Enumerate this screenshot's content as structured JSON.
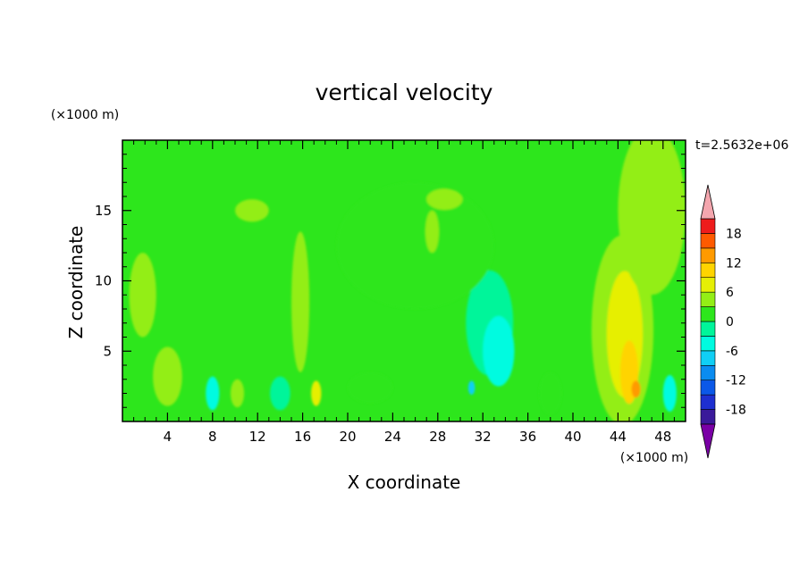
{
  "chart_data": {
    "type": "heatmap",
    "title": "vertical velocity",
    "xlabel": "X coordinate",
    "ylabel": "Z coordinate",
    "x_unit": "(×1000 m)",
    "y_unit": "(×1000 m)",
    "time_label": "t=2.5632e+06",
    "xlim": [
      0,
      50
    ],
    "ylim": [
      0,
      20
    ],
    "x_ticks": [
      4,
      8,
      12,
      16,
      20,
      24,
      28,
      32,
      36,
      40,
      44,
      48
    ],
    "y_ticks": [
      5,
      10,
      15
    ],
    "grid": false,
    "colorbar": {
      "levels": [
        -21,
        -18,
        -15,
        -12,
        -9,
        -6,
        -3,
        0,
        3,
        6,
        9,
        12,
        15,
        18,
        21
      ],
      "labeled_values": [
        18,
        12,
        6,
        0,
        -6,
        -12,
        -18
      ],
      "colors": [
        "#7a00a6",
        "#3a1a9a",
        "#1e2fd0",
        "#0b58e8",
        "#0a8cf0",
        "#10cff5",
        "#00fbe0",
        "#00f59a",
        "#2de61c",
        "#93ee16",
        "#e6ef05",
        "#ffd400",
        "#ff9a00",
        "#ff5a00",
        "#ee1c1c",
        "#f4a6ae"
      ],
      "extend": "both"
    },
    "background_value": 1,
    "features": [
      {
        "x": 4.0,
        "z": 2.6,
        "w": 0.9,
        "h": 1.6,
        "value": 11
      },
      {
        "x": 4.0,
        "z": 2.8,
        "w": 1.6,
        "h": 2.6,
        "value": 5
      },
      {
        "x": 4.0,
        "z": 3.2,
        "w": 2.6,
        "h": 4.2,
        "value": 3
      },
      {
        "x": 8.0,
        "z": 2.0,
        "w": 1.2,
        "h": 2.4,
        "value": -4
      },
      {
        "x": 10.2,
        "z": 2.0,
        "w": 1.2,
        "h": 2.0,
        "value": 4
      },
      {
        "x": 14.0,
        "z": 2.0,
        "w": 1.8,
        "h": 2.4,
        "value": -3
      },
      {
        "x": 17.2,
        "z": 2.0,
        "w": 0.9,
        "h": 1.8,
        "value": 7
      },
      {
        "x": 22.0,
        "z": 2.4,
        "w": 4.0,
        "h": 2.2,
        "value": 2
      },
      {
        "x": 32.6,
        "z": 7.0,
        "w": 4.2,
        "h": 7.5,
        "value": -2
      },
      {
        "x": 33.4,
        "z": 5.0,
        "w": 2.8,
        "h": 5.0,
        "value": -5
      },
      {
        "x": 31.0,
        "z": 2.4,
        "w": 0.6,
        "h": 1.0,
        "value": -9
      },
      {
        "x": 26.0,
        "z": 12.5,
        "w": 14.0,
        "h": 9.0,
        "value": 1
      },
      {
        "x": 38.0,
        "z": 2.0,
        "w": 2.0,
        "h": 3.0,
        "value": 2
      },
      {
        "x": 44.4,
        "z": 6.5,
        "w": 5.5,
        "h": 13.5,
        "value": 3
      },
      {
        "x": 44.4,
        "z": 6.5,
        "w": 4.4,
        "h": 11.5,
        "value": 5
      },
      {
        "x": 44.6,
        "z": 6.2,
        "w": 3.2,
        "h": 9.0,
        "value": 7
      },
      {
        "x": 45.0,
        "z": 3.5,
        "w": 1.6,
        "h": 4.5,
        "value": 10
      },
      {
        "x": 45.6,
        "z": 2.3,
        "w": 0.8,
        "h": 1.2,
        "value": 13
      },
      {
        "x": 48.6,
        "z": 2.0,
        "w": 1.2,
        "h": 2.6,
        "value": -4
      },
      {
        "x": 11.5,
        "z": 15.0,
        "w": 3.0,
        "h": 1.6,
        "value": 3
      },
      {
        "x": 28.6,
        "z": 15.8,
        "w": 3.2,
        "h": 1.5,
        "value": 3
      },
      {
        "x": 27.5,
        "z": 13.5,
        "w": 1.2,
        "h": 3.0,
        "value": 3
      },
      {
        "x": 15.8,
        "z": 8.5,
        "w": 1.6,
        "h": 10.0,
        "value": 3
      },
      {
        "x": 47.0,
        "z": 15.0,
        "w": 6.0,
        "h": 12.0,
        "value": 3
      },
      {
        "x": 1.8,
        "z": 9.0,
        "w": 2.4,
        "h": 6.0,
        "value": 3
      }
    ]
  }
}
